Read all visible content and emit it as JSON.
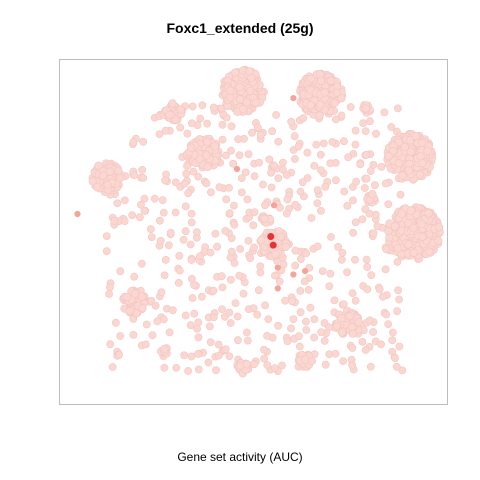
{
  "chart_data": {
    "type": "scatter",
    "title": "Foxc1_extended (25g)",
    "xlabel": "Gene set activity (AUC)",
    "ylabel": "",
    "grid": false,
    "legend": "none",
    "colors": {
      "low": "#fbd7d2",
      "low_edge": "#f3c6c0",
      "mid": "#f4a49a",
      "high": "#e8323a"
    },
    "clusters": [
      {
        "x": 0.47,
        "y": 0.91,
        "r": 0.055,
        "n": 170
      },
      {
        "x": 0.67,
        "y": 0.9,
        "r": 0.055,
        "n": 170
      },
      {
        "x": 0.9,
        "y": 0.72,
        "r": 0.06,
        "n": 200
      },
      {
        "x": 0.91,
        "y": 0.5,
        "r": 0.068,
        "n": 260
      },
      {
        "x": 0.37,
        "y": 0.73,
        "r": 0.04,
        "n": 90
      },
      {
        "x": 0.12,
        "y": 0.66,
        "r": 0.038,
        "n": 85
      },
      {
        "x": 0.29,
        "y": 0.85,
        "r": 0.025,
        "n": 45
      },
      {
        "x": 0.19,
        "y": 0.3,
        "r": 0.03,
        "n": 55
      },
      {
        "x": 0.74,
        "y": 0.24,
        "r": 0.032,
        "n": 65
      },
      {
        "x": 0.55,
        "y": 0.47,
        "r": 0.035,
        "n": 70
      },
      {
        "x": 0.79,
        "y": 0.86,
        "r": 0.012,
        "n": 10
      },
      {
        "x": 0.27,
        "y": 0.16,
        "r": 0.01,
        "n": 8
      },
      {
        "x": 0.63,
        "y": 0.13,
        "r": 0.018,
        "n": 20
      },
      {
        "x": 0.47,
        "y": 0.11,
        "r": 0.016,
        "n": 18
      },
      {
        "x": 0.8,
        "y": 0.6,
        "r": 0.012,
        "n": 12
      },
      {
        "x": 0.53,
        "y": 0.54,
        "r": 0.012,
        "n": 10
      }
    ],
    "scatter": {
      "x": [
        0.12,
        0.88
      ],
      "y": [
        0.1,
        0.87
      ],
      "n": 540
    },
    "highlight_points": [
      {
        "x": 0.548,
        "y": 0.465,
        "level": "high"
      },
      {
        "x": 0.542,
        "y": 0.49,
        "level": "high"
      },
      {
        "x": 0.56,
        "y": 0.34,
        "level": "mid"
      },
      {
        "x": 0.55,
        "y": 0.58,
        "level": "mid"
      },
      {
        "x": 0.045,
        "y": 0.555,
        "level": "mid"
      },
      {
        "x": 0.6,
        "y": 0.89,
        "level": "mid"
      },
      {
        "x": 0.455,
        "y": 0.685,
        "level": "mid"
      },
      {
        "x": 0.56,
        "y": 0.4,
        "level": "mid"
      },
      {
        "x": 0.6,
        "y": 0.38,
        "level": "mid"
      },
      {
        "x": 0.63,
        "y": 0.39,
        "level": "mid"
      }
    ]
  }
}
